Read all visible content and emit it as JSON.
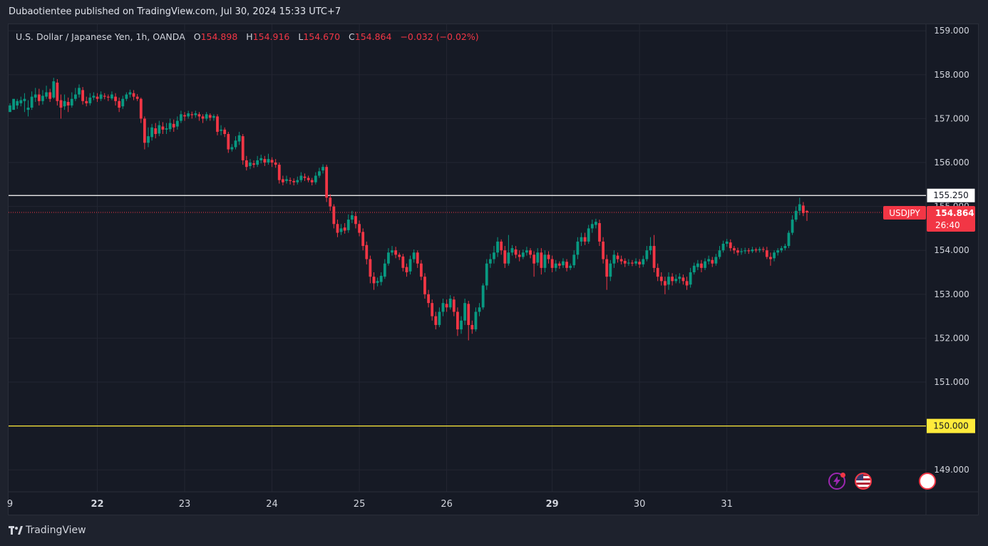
{
  "caption": "Dubaotientee published on TradingView.com, Jul 30, 2024 15:33 UTC+7",
  "legend": {
    "instrument": "U.S. Dollar / Japanese Yen, 1h, OANDA",
    "open_label": "O",
    "open": "154.898",
    "high_label": "H",
    "high": "154.916",
    "low_label": "L",
    "low": "154.670",
    "close_label": "C",
    "close": "154.864",
    "change": "−0.032 (−0.02%)"
  },
  "brand": "TradingView",
  "colors": {
    "background": "#161a25",
    "grid": "#232632",
    "up": "#089981",
    "down": "#f23645",
    "resistance": "#ffffff",
    "support": "#ffeb3b",
    "price_tag": "#f23645"
  },
  "chart_data": {
    "type": "candlestick",
    "symbol": "USDJPY",
    "timeframe": "1h",
    "ylim": [
      148.5,
      159.15
    ],
    "y_ticks": [
      "159.000",
      "158.000",
      "157.000",
      "156.000",
      "155.000",
      "154.000",
      "153.000",
      "152.000",
      "151.000",
      "150.000",
      "149.000"
    ],
    "x_ticks": [
      {
        "label": "9",
        "bold": false,
        "candle": 0
      },
      {
        "label": "22",
        "bold": true,
        "candle": 24
      },
      {
        "label": "23",
        "bold": false,
        "candle": 48
      },
      {
        "label": "24",
        "bold": false,
        "candle": 72
      },
      {
        "label": "25",
        "bold": false,
        "candle": 96
      },
      {
        "label": "26",
        "bold": false,
        "candle": 120
      },
      {
        "label": "29",
        "bold": true,
        "candle": 149
      },
      {
        "label": "30",
        "bold": false,
        "candle": 173
      },
      {
        "label": "31",
        "bold": false,
        "candle": 197
      }
    ],
    "horizontal_lines": [
      {
        "price": 155.25,
        "label": "155.250",
        "style": "solid",
        "color": "#ffffff"
      },
      {
        "price": 150.0,
        "label": "150.000",
        "style": "solid",
        "color": "#ffeb3b"
      }
    ],
    "last_price": {
      "price": 154.864,
      "label": "154.864",
      "countdown": "26:40",
      "symbol_label": "USDJPY"
    },
    "candles": [
      [
        157.15,
        157.3,
        157.2,
        157.35
      ],
      [
        157.2,
        157.45,
        157.3,
        157.38
      ],
      [
        157.3,
        157.4,
        157.22,
        157.45
      ],
      [
        157.35,
        157.42,
        157.28,
        157.5
      ],
      [
        157.4,
        157.45,
        157.15,
        157.58
      ],
      [
        157.2,
        157.25,
        157.05,
        157.42
      ],
      [
        157.25,
        157.5,
        157.2,
        157.62
      ],
      [
        157.48,
        157.55,
        157.38,
        157.7
      ],
      [
        157.55,
        157.4,
        157.3,
        157.68
      ],
      [
        157.4,
        157.52,
        157.32,
        157.65
      ],
      [
        157.5,
        157.6,
        157.45,
        157.75
      ],
      [
        157.6,
        157.45,
        157.38,
        157.68
      ],
      [
        157.48,
        157.85,
        157.45,
        157.93
      ],
      [
        157.82,
        157.4,
        157.3,
        157.9
      ],
      [
        157.42,
        157.25,
        157.0,
        157.55
      ],
      [
        157.28,
        157.4,
        157.2,
        157.55
      ],
      [
        157.38,
        157.3,
        157.15,
        157.48
      ],
      [
        157.3,
        157.45,
        157.25,
        157.6
      ],
      [
        157.45,
        157.55,
        157.4,
        157.7
      ],
      [
        157.55,
        157.7,
        157.48,
        157.78
      ],
      [
        157.65,
        157.4,
        157.32,
        157.72
      ],
      [
        157.4,
        157.35,
        157.28,
        157.5
      ],
      [
        157.35,
        157.48,
        157.3,
        157.58
      ],
      [
        157.48,
        157.52,
        157.42,
        157.6
      ],
      [
        157.5,
        157.45,
        157.38,
        157.58
      ],
      [
        157.45,
        157.55,
        157.4,
        157.62
      ],
      [
        157.52,
        157.5,
        157.44,
        157.58
      ],
      [
        157.5,
        157.48,
        157.4,
        157.55
      ],
      [
        157.46,
        157.55,
        157.42,
        157.62
      ],
      [
        157.5,
        157.4,
        157.3,
        157.58
      ],
      [
        157.4,
        157.25,
        157.15,
        157.48
      ],
      [
        157.28,
        157.45,
        157.22,
        157.52
      ],
      [
        157.45,
        157.55,
        157.4,
        157.6
      ],
      [
        157.55,
        157.6,
        157.48,
        157.66
      ],
      [
        157.58,
        157.5,
        157.42,
        157.65
      ],
      [
        157.5,
        157.45,
        157.4,
        157.56
      ],
      [
        157.45,
        157.0,
        156.9,
        157.48
      ],
      [
        157.0,
        156.45,
        156.3,
        157.05
      ],
      [
        156.45,
        156.6,
        156.35,
        156.8
      ],
      [
        156.58,
        156.8,
        156.5,
        156.88
      ],
      [
        156.78,
        156.65,
        156.55,
        156.9
      ],
      [
        156.66,
        156.85,
        156.6,
        156.95
      ],
      [
        156.82,
        156.75,
        156.65,
        156.92
      ],
      [
        156.75,
        156.78,
        156.65,
        156.9
      ],
      [
        156.76,
        156.9,
        156.7,
        157.0
      ],
      [
        156.88,
        156.8,
        156.7,
        156.98
      ],
      [
        156.82,
        156.95,
        156.75,
        157.05
      ],
      [
        156.95,
        157.1,
        156.9,
        157.18
      ],
      [
        157.08,
        157.05,
        156.95,
        157.15
      ],
      [
        157.05,
        157.12,
        157.0,
        157.18
      ],
      [
        157.1,
        157.08,
        157.0,
        157.16
      ],
      [
        157.08,
        157.12,
        157.02,
        157.18
      ],
      [
        157.1,
        157.05,
        156.95,
        157.15
      ],
      [
        157.05,
        157.0,
        156.9,
        157.1
      ],
      [
        157.0,
        157.1,
        156.95,
        157.15
      ],
      [
        157.08,
        157.02,
        156.95,
        157.12
      ],
      [
        157.02,
        157.06,
        156.95,
        157.1
      ],
      [
        157.05,
        156.7,
        156.62,
        157.1
      ],
      [
        156.72,
        156.75,
        156.62,
        156.85
      ],
      [
        156.75,
        156.65,
        156.58,
        156.8
      ],
      [
        156.65,
        156.3,
        156.22,
        156.7
      ],
      [
        156.3,
        156.35,
        156.25,
        156.42
      ],
      [
        156.35,
        156.5,
        156.3,
        156.6
      ],
      [
        156.48,
        156.62,
        156.4,
        156.7
      ],
      [
        156.6,
        156.05,
        155.95,
        156.65
      ],
      [
        156.05,
        155.9,
        155.82,
        156.15
      ],
      [
        155.92,
        156.0,
        155.85,
        156.08
      ],
      [
        155.98,
        155.95,
        155.88,
        156.05
      ],
      [
        155.95,
        156.05,
        155.9,
        156.15
      ],
      [
        156.05,
        156.1,
        155.98,
        156.18
      ],
      [
        156.08,
        156.0,
        155.92,
        156.15
      ],
      [
        156.0,
        156.08,
        155.95,
        156.2
      ],
      [
        156.06,
        156.0,
        155.9,
        156.12
      ],
      [
        156.0,
        155.95,
        155.88,
        156.08
      ],
      [
        155.95,
        155.6,
        155.52,
        156.0
      ],
      [
        155.62,
        155.55,
        155.48,
        155.7
      ],
      [
        155.58,
        155.62,
        155.52,
        155.7
      ],
      [
        155.6,
        155.58,
        155.5,
        155.66
      ],
      [
        155.58,
        155.55,
        155.48,
        155.64
      ],
      [
        155.55,
        155.6,
        155.5,
        155.68
      ],
      [
        155.6,
        155.7,
        155.55,
        155.78
      ],
      [
        155.68,
        155.65,
        155.58,
        155.75
      ],
      [
        155.65,
        155.6,
        155.55,
        155.7
      ],
      [
        155.6,
        155.55,
        155.48,
        155.65
      ],
      [
        155.55,
        155.7,
        155.5,
        155.78
      ],
      [
        155.7,
        155.8,
        155.65,
        155.88
      ],
      [
        155.82,
        155.9,
        155.75,
        155.96
      ],
      [
        155.9,
        155.2,
        155.1,
        155.95
      ],
      [
        155.2,
        155.0,
        154.9,
        155.28
      ],
      [
        155.0,
        154.6,
        154.5,
        155.05
      ],
      [
        154.6,
        154.4,
        154.3,
        154.7
      ],
      [
        154.42,
        154.5,
        154.35,
        154.6
      ],
      [
        154.52,
        154.45,
        154.38,
        154.62
      ],
      [
        154.46,
        154.7,
        154.4,
        154.82
      ],
      [
        154.7,
        154.8,
        154.62,
        154.9
      ],
      [
        154.78,
        154.6,
        154.5,
        154.88
      ],
      [
        154.6,
        154.4,
        154.32,
        154.68
      ],
      [
        154.42,
        154.1,
        154.0,
        154.5
      ],
      [
        154.12,
        153.8,
        153.68,
        154.2
      ],
      [
        153.8,
        153.4,
        153.25,
        153.88
      ],
      [
        153.4,
        153.25,
        153.1,
        153.5
      ],
      [
        153.26,
        153.3,
        153.18,
        153.38
      ],
      [
        153.28,
        153.42,
        153.2,
        153.5
      ],
      [
        153.4,
        153.7,
        153.35,
        153.8
      ],
      [
        153.7,
        153.95,
        153.65,
        154.05
      ],
      [
        153.95,
        154.0,
        153.88,
        154.1
      ],
      [
        154.0,
        153.9,
        153.82,
        154.08
      ],
      [
        153.9,
        153.85,
        153.78,
        153.95
      ],
      [
        153.86,
        153.6,
        153.52,
        153.92
      ],
      [
        153.62,
        153.5,
        153.4,
        153.7
      ],
      [
        153.52,
        153.8,
        153.45,
        153.88
      ],
      [
        153.8,
        153.95,
        153.72,
        154.02
      ],
      [
        153.95,
        153.7,
        153.6,
        154.0
      ],
      [
        153.7,
        153.4,
        153.32,
        153.78
      ],
      [
        153.4,
        153.0,
        152.9,
        153.48
      ],
      [
        153.0,
        152.8,
        152.7,
        153.1
      ],
      [
        152.8,
        152.5,
        152.4,
        152.88
      ],
      [
        152.5,
        152.3,
        152.2,
        152.6
      ],
      [
        152.3,
        152.6,
        152.25,
        152.7
      ],
      [
        152.6,
        152.8,
        152.5,
        152.9
      ],
      [
        152.78,
        152.7,
        152.6,
        152.88
      ],
      [
        152.7,
        152.9,
        152.65,
        152.98
      ],
      [
        152.88,
        152.6,
        152.5,
        152.95
      ],
      [
        152.6,
        152.2,
        152.05,
        152.7
      ],
      [
        152.2,
        152.4,
        152.1,
        152.5
      ],
      [
        152.4,
        152.8,
        152.3,
        152.9
      ],
      [
        152.78,
        152.3,
        151.95,
        152.85
      ],
      [
        152.3,
        152.2,
        152.1,
        152.4
      ],
      [
        152.2,
        152.6,
        152.15,
        152.7
      ],
      [
        152.6,
        152.7,
        152.5,
        152.8
      ],
      [
        152.7,
        153.2,
        152.65,
        153.25
      ],
      [
        153.2,
        153.7,
        153.1,
        153.8
      ],
      [
        153.7,
        153.8,
        153.6,
        153.92
      ],
      [
        153.8,
        153.95,
        153.7,
        154.1
      ],
      [
        153.95,
        154.2,
        153.85,
        154.3
      ],
      [
        154.2,
        154.0,
        153.9,
        154.25
      ],
      [
        154.0,
        153.7,
        153.6,
        154.1
      ],
      [
        153.7,
        153.95,
        153.65,
        154.35
      ],
      [
        153.95,
        154.05,
        153.88,
        154.12
      ],
      [
        154.02,
        153.9,
        153.82,
        154.1
      ],
      [
        153.9,
        153.85,
        153.75,
        154.0
      ],
      [
        153.85,
        153.95,
        153.8,
        154.02
      ],
      [
        153.95,
        154.0,
        153.88,
        154.08
      ],
      [
        154.0,
        153.9,
        153.82,
        154.05
      ],
      [
        153.9,
        153.7,
        153.4,
        153.98
      ],
      [
        153.72,
        153.95,
        153.65,
        154.05
      ],
      [
        153.95,
        153.6,
        153.45,
        154.05
      ],
      [
        153.6,
        153.9,
        153.5,
        154.0
      ],
      [
        153.9,
        153.8,
        153.7,
        153.98
      ],
      [
        153.8,
        153.6,
        153.5,
        153.88
      ],
      [
        153.6,
        153.7,
        153.52,
        153.78
      ],
      [
        153.7,
        153.65,
        153.58,
        153.75
      ],
      [
        153.66,
        153.75,
        153.6,
        153.82
      ],
      [
        153.74,
        153.6,
        153.52,
        153.8
      ],
      [
        153.6,
        153.65,
        153.55,
        153.7
      ],
      [
        153.66,
        153.9,
        153.6,
        154.0
      ],
      [
        153.9,
        154.2,
        153.8,
        154.3
      ],
      [
        154.2,
        154.3,
        154.1,
        154.4
      ],
      [
        154.3,
        154.2,
        154.12,
        154.4
      ],
      [
        154.2,
        154.5,
        154.15,
        154.58
      ],
      [
        154.5,
        154.6,
        154.4,
        154.7
      ],
      [
        154.58,
        154.65,
        154.5,
        154.72
      ],
      [
        154.62,
        154.2,
        154.1,
        154.7
      ],
      [
        154.2,
        153.8,
        153.7,
        154.3
      ],
      [
        153.8,
        153.4,
        153.1,
        153.9
      ],
      [
        153.4,
        153.7,
        153.3,
        153.78
      ],
      [
        153.7,
        153.9,
        153.6,
        154.0
      ],
      [
        153.88,
        153.8,
        153.72,
        153.95
      ],
      [
        153.8,
        153.75,
        153.68,
        153.88
      ],
      [
        153.76,
        153.7,
        153.62,
        153.82
      ],
      [
        153.7,
        153.72,
        153.65,
        153.8
      ],
      [
        153.72,
        153.7,
        153.64,
        153.78
      ],
      [
        153.7,
        153.75,
        153.65,
        153.82
      ],
      [
        153.74,
        153.68,
        153.6,
        153.8
      ],
      [
        153.68,
        153.8,
        153.62,
        153.88
      ],
      [
        153.8,
        154.0,
        153.75,
        154.1
      ],
      [
        154.0,
        154.1,
        153.9,
        154.3
      ],
      [
        154.1,
        153.6,
        153.5,
        154.35
      ],
      [
        153.6,
        153.4,
        153.3,
        153.7
      ],
      [
        153.4,
        153.3,
        153.2,
        153.5
      ],
      [
        153.3,
        153.2,
        153.0,
        153.4
      ],
      [
        153.22,
        153.4,
        153.1,
        153.5
      ],
      [
        153.4,
        153.3,
        153.2,
        153.48
      ],
      [
        153.3,
        153.35,
        153.25,
        153.45
      ],
      [
        153.35,
        153.4,
        153.25,
        153.48
      ],
      [
        153.38,
        153.3,
        153.22,
        153.45
      ],
      [
        153.3,
        153.2,
        153.1,
        153.4
      ],
      [
        153.22,
        153.5,
        153.15,
        153.6
      ],
      [
        153.5,
        153.65,
        153.45,
        153.72
      ],
      [
        153.62,
        153.7,
        153.55,
        153.78
      ],
      [
        153.7,
        153.6,
        153.5,
        153.78
      ],
      [
        153.6,
        153.75,
        153.55,
        153.82
      ],
      [
        153.75,
        153.8,
        153.68,
        153.88
      ],
      [
        153.78,
        153.7,
        153.62,
        153.85
      ],
      [
        153.7,
        153.85,
        153.65,
        153.92
      ],
      [
        153.85,
        154.0,
        153.8,
        154.1
      ],
      [
        154.0,
        154.15,
        153.95,
        154.22
      ],
      [
        154.15,
        154.2,
        154.08,
        154.26
      ],
      [
        154.18,
        154.05,
        153.98,
        154.25
      ],
      [
        154.05,
        154.0,
        153.92,
        154.1
      ],
      [
        154.0,
        153.95,
        153.88,
        154.06
      ],
      [
        153.96,
        153.98,
        153.9,
        154.05
      ],
      [
        153.98,
        154.0,
        153.92,
        154.06
      ],
      [
        154.0,
        153.98,
        153.92,
        154.05
      ],
      [
        153.98,
        154.02,
        153.94,
        154.08
      ],
      [
        154.02,
        154.0,
        153.95,
        154.06
      ],
      [
        154.0,
        154.03,
        153.95,
        154.08
      ],
      [
        154.03,
        154.02,
        153.96,
        154.08
      ],
      [
        154.0,
        153.85,
        153.8,
        154.08
      ],
      [
        153.85,
        153.8,
        153.65,
        153.95
      ],
      [
        153.82,
        153.95,
        153.75,
        154.0
      ],
      [
        153.95,
        154.0,
        153.88,
        154.05
      ],
      [
        154.0,
        154.05,
        153.95,
        154.1
      ],
      [
        154.05,
        154.1,
        154.0,
        154.15
      ],
      [
        154.1,
        154.4,
        154.05,
        154.45
      ],
      [
        154.4,
        154.7,
        154.35,
        154.8
      ],
      [
        154.7,
        154.9,
        154.65,
        155.0
      ],
      [
        154.9,
        155.05,
        154.8,
        155.2
      ],
      [
        155.02,
        154.85,
        154.78,
        155.1
      ],
      [
        154.898,
        154.864,
        154.67,
        154.916
      ]
    ]
  }
}
